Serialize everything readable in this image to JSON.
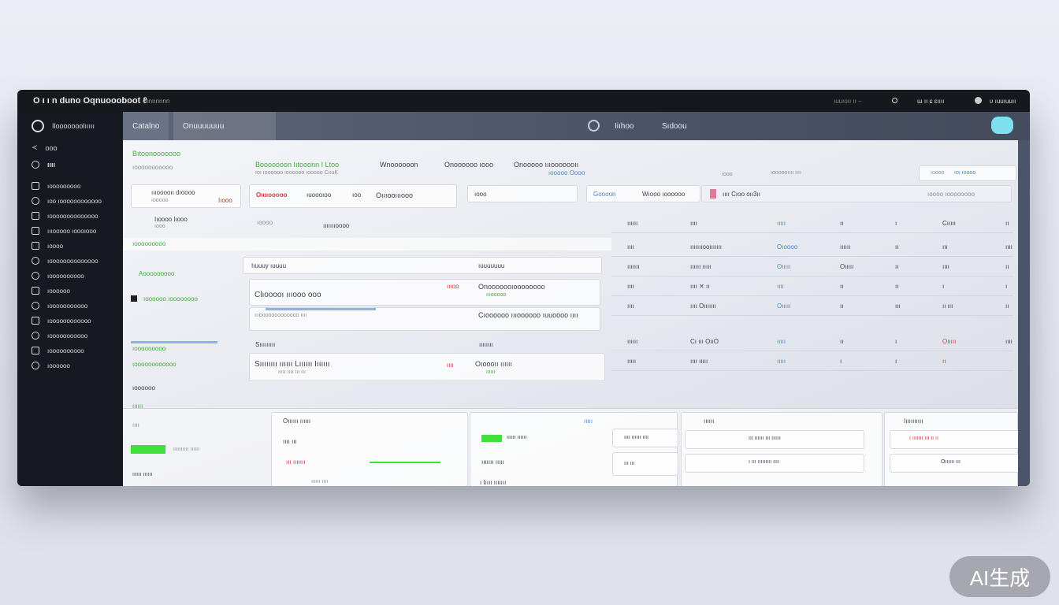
{
  "titlebar": {
    "title": "O ı ı n  duno  Oqnuoooboot ℓ",
    "subtitle": "ınnnnnnn",
    "right_status": "ıuuıoıı ıı  –",
    "account": "ɯ ıı ɕ ɛıııı",
    "user": "ʋ ıuuıuuıı"
  },
  "sidebar": {
    "brand": "Ilooooooolııııı",
    "items": [
      {
        "label": "ooo"
      },
      {
        "label": "ıııı"
      },
      {
        "label": "ıooooooooo"
      },
      {
        "label": "ıoo ıoooooooooooo"
      },
      {
        "label": "ıoooooooooooooo"
      },
      {
        "label": "ıııooooo ıoooıooo"
      },
      {
        "label": "ıoooo"
      },
      {
        "label": "ıoooooooooooooo"
      },
      {
        "label": "ıoooooooooo"
      },
      {
        "label": "ıoooooo"
      },
      {
        "label": "ıooooooooooo"
      },
      {
        "label": "ıoooooooooooo"
      },
      {
        "label": "ıooooooooooo"
      },
      {
        "label": "ıoooooooooo"
      },
      {
        "label": "ıoooooo"
      }
    ]
  },
  "header": {
    "tabs": [
      "Catalno",
      "Onuuuuuuu"
    ],
    "center_tabs": [
      "Iiıhoo",
      "Sıdoou"
    ]
  },
  "top": {
    "green_title": "Bıtoonooooooo",
    "subtitle": "ıooooooooooo",
    "headline": "Booooooon  Iıtooonn I Ltoo",
    "headline_sub": "ıoı ıoooooo   ıoooooo   ıooooo CııuK",
    "col2": "Wnoooooon",
    "col3": "Onoooooo ıooo",
    "col4": "Onooooo ıııooooooıı",
    "col4_sub": "ıooooo Oooo",
    "card1_title": "ıııooooıı dıoooo",
    "card1_sub": "ıooooo",
    "card1_tag": "Iıooo",
    "card2_title": "Iıoooo  lıooo",
    "card2_sub": "ıooo",
    "red_label": "Oııııooooo",
    "f2": "ıuoooıoo",
    "f3": "ıoo",
    "f4": "Oıııooıııooo",
    "search1": "ıooo",
    "search2": "Goooon",
    "search3": "Wıooo  ıoooooo",
    "search4": "ıııı  Cıoo oıı3ıı",
    "right1": "ıoooo ıoooooooo",
    "misc1": "ıooo",
    "misc2": "ıoooooıııı ıııı",
    "filter1": "ıoooo",
    "filter2": "ıoı ıoooo",
    "right_tag": "ıoooıı",
    "right_tag2": "ıııııııoooo"
  },
  "middle": {
    "left_title": "ıooooooooo",
    "left_green": "Aooooooooo",
    "left_item": "ıoooooo ıoooooooo",
    "left_bar_label": "ıooooooooo",
    "left_green2": "ıoooooooooooo",
    "left_green3": "ıoooooo",
    "head1": "Iıuuuy  ıuuuu",
    "head2": "ıuuuuuuu",
    "card_a_title": "Clıooooı  ıııooo ooo",
    "card_a_right": "Onooooooıoooooooo",
    "card_a_green": "ıııooooo",
    "card_a_red": "ıııoo",
    "card_a_note": "Cıoooooo ıııoooooo ıuuoooo ıııı",
    "card_a_small": "ıııooooooooooooo ıııı",
    "sec2": "Sııııııııı",
    "sec2_right": "ıııııııı",
    "card_b_title": "Sıııııııı  ıııııı  Lıııııı Iıııııı",
    "card_b_sub": "ııııı ıııı  ııı ııı",
    "card_b_right": "Oıoooıı  ıııııı",
    "card_b_red": "ıııı",
    "card_b_green": "ıııııı"
  },
  "table": {
    "rows": [
      [
        "ıııı",
        "ıııııııooııııııı",
        "Oıoooo",
        "ıııııı",
        "ıı",
        "ııı",
        "ıııı"
      ],
      [
        "ııııııı",
        "ıııııı ııııı",
        "Oııııı",
        "Oııııı",
        "ıı",
        "ıııı",
        "ıı"
      ],
      [
        "ıııı",
        "ıııı  ✕  ıı",
        "ıııı",
        "ıı",
        "ıı",
        "ı",
        "ı"
      ],
      [
        "ıııı",
        "ıııı Oııııııı",
        "Oııııı",
        "ıı",
        "ııı",
        "ıı ııı",
        "ıı"
      ],
      [
        "ıııııı",
        "Cı ııı  OııO",
        "ııııı",
        "ıı",
        "ı",
        "Oııııı",
        "ıııı"
      ],
      [
        "ııııı",
        "ıııı ııııı",
        "ııııı",
        "ı",
        "ı",
        "ıı",
        ""
      ]
    ],
    "header": [
      "ıııııı",
      "ıııı",
      "ııııı",
      "ıı",
      "ı",
      "Cııııı",
      "ıı"
    ]
  },
  "bottom": {
    "g1": "ıııııı",
    "g2": "ıııı",
    "g3": "ıııııııııı ıııııı",
    "g4": "ıııııı  ıııııı",
    "p1": "Oıııııı  ıııııı",
    "p2": "ııııı",
    "p3": "ıııııı",
    "p4": "Iıııııııııı",
    "c1": "ıııı ııı",
    "c2": "ııı  ııııııı",
    "c3": "ıııııı  ıııı",
    "c4": "ıııııı  ıııııı",
    "c5": "ııııııı  ııııı",
    "c6": "ıııı ıııııı ıııı",
    "c7": "ı Iıııı ııııııı",
    "d1": "ııı ıııııı ııı ıııııı",
    "d2": "ı ııı ııııııııı ıııı",
    "e1": "ı ııııııı ııı ıı ıı",
    "e2": "Oıııııı  ııı",
    "e3": "ııı  ııı",
    "e4": "ııııı ıııı ııı"
  },
  "progress": {
    "green_fill_bottom": 1.0
  },
  "watermark": "AI生成",
  "colors": {
    "accent_green": "#3fae3a",
    "accent_red": "#d23b3b",
    "accent_blue": "#4a86c8",
    "frame": "#15181d",
    "header": "#4a5366"
  }
}
